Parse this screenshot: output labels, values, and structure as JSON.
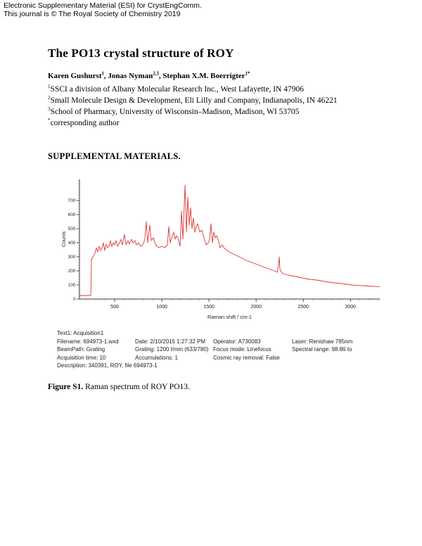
{
  "page": {
    "header": {
      "line1": "Electronic Supplementary Material (ESI) for CrystEngComm.",
      "line2": "This journal is © The Royal Society of Chemistry 2019"
    },
    "title": "The PO13 crystal structure of ROY",
    "authors": [
      {
        "name": "Karen Gushurst",
        "sup": "1"
      },
      {
        "name": "Jonas Nyman",
        "sup": "2,3"
      },
      {
        "name": "Stephan X.M. Boerrigter",
        "sup": "1*"
      }
    ],
    "affiliations": [
      {
        "sup": "1",
        "text": "SSCI a division of Albany Molecular Research Inc., West Lafayette, IN 47906"
      },
      {
        "sup": "2",
        "text": "Small Molecule Design & Development, Eli Lilly and Company, Indianapolis, IN 46221"
      },
      {
        "sup": "3",
        "text": "School of Pharmacy, University of Wisconsin–Madison, Madison, WI 53705"
      },
      {
        "sup": "*",
        "text": "corresponding author"
      }
    ],
    "section_heading": "SUPPLEMENTAL MATERIALS.",
    "figure": {
      "metadata": {
        "col1": [
          "Text1: Acquisition1",
          "Filename: 694973-1.wxd",
          "BeamPath: Grating",
          "Acquisition time: 10",
          "Description: 340391, ROY, file 694973-1"
        ],
        "col2": [
          "",
          "Date: 2/10/2015 1:27:32 PM",
          "Grating: 1200 l/mm (633/780)",
          "Accumulations: 1"
        ],
        "col3": [
          "",
          "Operator: A730083",
          "Focus mode: Linefocus",
          "Cosmic ray removal: False"
        ],
        "col4": [
          "",
          "Laser: Renishaw 785nm",
          "Spectral range: 98.86 to"
        ]
      },
      "caption_label": "Figure S1.",
      "caption_text": " Raman spectrum of ROY PO13."
    }
  },
  "chart_data": {
    "type": "line",
    "title": "",
    "xlabel": "Raman shift / cm-1",
    "ylabel": "Counts",
    "xlim": [
      127,
      3311
    ],
    "ylim": [
      0,
      850
    ],
    "x_ticks": [
      500,
      1000,
      1500,
      2000,
      2500,
      3000
    ],
    "y_ticks": [
      0,
      100,
      200,
      300,
      400,
      500,
      600,
      700
    ],
    "x_minor_step": 100,
    "y_minor_step": 20,
    "grid": false,
    "legend": false,
    "line_color": "#e03636",
    "axis_color": "#3a3a3a",
    "series": [
      {
        "name": "Raman spectrum 694973-1",
        "points": [
          [
            127,
            25
          ],
          [
            245,
            25
          ],
          [
            249,
            80
          ],
          [
            251,
            170
          ],
          [
            254,
            280
          ],
          [
            291,
            325
          ],
          [
            306,
            365
          ],
          [
            321,
            335
          ],
          [
            336,
            375
          ],
          [
            351,
            345
          ],
          [
            366,
            365
          ],
          [
            381,
            400
          ],
          [
            395,
            345
          ],
          [
            410,
            390
          ],
          [
            425,
            365
          ],
          [
            440,
            375
          ],
          [
            455,
            415
          ],
          [
            470,
            375
          ],
          [
            485,
            400
          ],
          [
            500,
            385
          ],
          [
            515,
            415
          ],
          [
            530,
            375
          ],
          [
            552,
            400
          ],
          [
            567,
            425
          ],
          [
            582,
            385
          ],
          [
            604,
            460
          ],
          [
            619,
            385
          ],
          [
            642,
            415
          ],
          [
            656,
            390
          ],
          [
            679,
            425
          ],
          [
            694,
            400
          ],
          [
            716,
            415
          ],
          [
            731,
            385
          ],
          [
            753,
            400
          ],
          [
            776,
            375
          ],
          [
            798,
            385
          ],
          [
            820,
            425
          ],
          [
            835,
            550
          ],
          [
            850,
            400
          ],
          [
            873,
            525
          ],
          [
            888,
            415
          ],
          [
            910,
            435
          ],
          [
            925,
            400
          ],
          [
            947,
            375
          ],
          [
            970,
            365
          ],
          [
            999,
            375
          ],
          [
            1029,
            365
          ],
          [
            1059,
            385
          ],
          [
            1074,
            515
          ],
          [
            1089,
            400
          ],
          [
            1111,
            450
          ],
          [
            1126,
            475
          ],
          [
            1141,
            425
          ],
          [
            1156,
            450
          ],
          [
            1171,
            435
          ],
          [
            1193,
            375
          ],
          [
            1208,
            625
          ],
          [
            1223,
            425
          ],
          [
            1246,
            810
          ],
          [
            1261,
            475
          ],
          [
            1275,
            725
          ],
          [
            1290,
            525
          ],
          [
            1305,
            650
          ],
          [
            1320,
            500
          ],
          [
            1335,
            575
          ],
          [
            1350,
            475
          ],
          [
            1365,
            515
          ],
          [
            1380,
            535
          ],
          [
            1402,
            475
          ],
          [
            1425,
            490
          ],
          [
            1447,
            435
          ],
          [
            1469,
            385
          ],
          [
            1492,
            400
          ],
          [
            1507,
            425
          ],
          [
            1521,
            535
          ],
          [
            1536,
            400
          ],
          [
            1551,
            475
          ],
          [
            1566,
            435
          ],
          [
            1581,
            450
          ],
          [
            1596,
            425
          ],
          [
            1618,
            365
          ],
          [
            1641,
            385
          ],
          [
            1656,
            365
          ],
          [
            1685,
            350
          ],
          [
            1715,
            335
          ],
          [
            1745,
            325
          ],
          [
            1790,
            310
          ],
          [
            1835,
            295
          ],
          [
            1894,
            275
          ],
          [
            1954,
            260
          ],
          [
            2013,
            245
          ],
          [
            2073,
            230
          ],
          [
            2133,
            215
          ],
          [
            2192,
            200
          ],
          [
            2222,
            190
          ],
          [
            2237,
            240
          ],
          [
            2245,
            300
          ],
          [
            2252,
            210
          ],
          [
            2282,
            180
          ],
          [
            2342,
            170
          ],
          [
            2416,
            160
          ],
          [
            2491,
            150
          ],
          [
            2565,
            140
          ],
          [
            2640,
            135
          ],
          [
            2729,
            125
          ],
          [
            2819,
            115
          ],
          [
            2908,
            110
          ],
          [
            3013,
            100
          ],
          [
            3124,
            95
          ],
          [
            3236,
            90
          ],
          [
            3311,
            88
          ]
        ]
      }
    ]
  }
}
